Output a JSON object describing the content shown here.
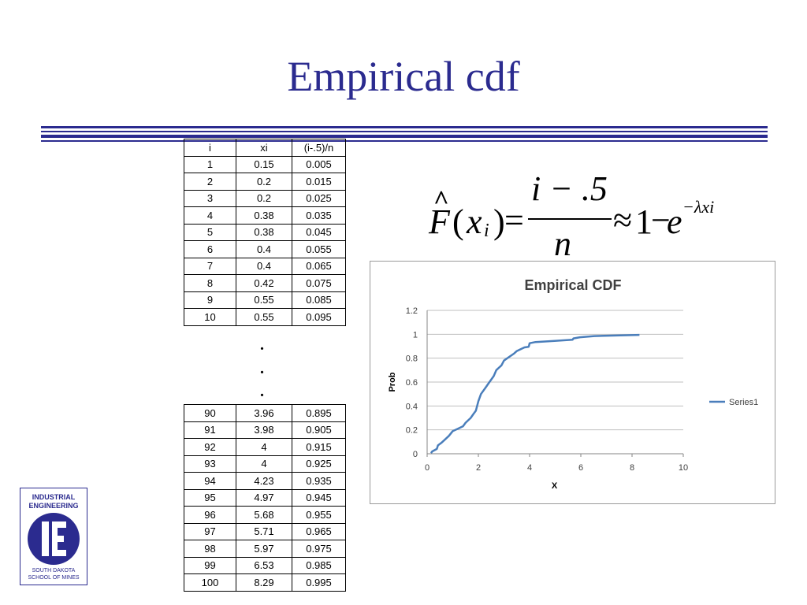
{
  "title": "Empirical cdf",
  "table": {
    "headers": [
      "i",
      "xi",
      "(i-.5)/n"
    ],
    "rows_top": [
      [
        "1",
        "0.15",
        "0.005"
      ],
      [
        "2",
        "0.2",
        "0.015"
      ],
      [
        "3",
        "0.2",
        "0.025"
      ],
      [
        "4",
        "0.38",
        "0.035"
      ],
      [
        "5",
        "0.38",
        "0.045"
      ],
      [
        "6",
        "0.4",
        "0.055"
      ],
      [
        "7",
        "0.4",
        "0.065"
      ],
      [
        "8",
        "0.42",
        "0.075"
      ],
      [
        "9",
        "0.55",
        "0.085"
      ],
      [
        "10",
        "0.55",
        "0.095"
      ]
    ],
    "ellipsis": ".",
    "rows_bottom": [
      [
        "90",
        "3.96",
        "0.895"
      ],
      [
        "91",
        "3.98",
        "0.905"
      ],
      [
        "92",
        "4",
        "0.915"
      ],
      [
        "93",
        "4",
        "0.925"
      ],
      [
        "94",
        "4.23",
        "0.935"
      ],
      [
        "95",
        "4.97",
        "0.945"
      ],
      [
        "96",
        "5.68",
        "0.955"
      ],
      [
        "97",
        "5.71",
        "0.965"
      ],
      [
        "98",
        "5.97",
        "0.975"
      ],
      [
        "99",
        "6.53",
        "0.985"
      ],
      [
        "100",
        "8.29",
        "0.995"
      ]
    ]
  },
  "formula": {
    "F": "F",
    "hat": "^",
    "open_paren": "(",
    "x": "x",
    "sub_i": "i",
    "close_paren": ")",
    "equals": "=",
    "numerator": "i − .5",
    "denominator": "n",
    "approx": "≈",
    "one": "1",
    "minus": "−",
    "e": "e",
    "exponent": "−λxi"
  },
  "chart_data": {
    "type": "line",
    "title": "Empirical CDF",
    "xlabel": "X",
    "ylabel": "Prob",
    "xlim": [
      0,
      10
    ],
    "ylim": [
      0,
      1.2
    ],
    "xticks": [
      "0",
      "2",
      "4",
      "6",
      "8",
      "10"
    ],
    "yticks": [
      "0",
      "0.2",
      "0.4",
      "0.6",
      "0.8",
      "1",
      "1.2"
    ],
    "grid": true,
    "legend_position": "right",
    "series": [
      {
        "name": "Series1",
        "color": "#4a7ebb",
        "x": [
          0.15,
          0.2,
          0.38,
          0.42,
          0.55,
          0.7,
          0.85,
          1.0,
          1.2,
          1.4,
          1.5,
          1.7,
          1.8,
          1.9,
          2.0,
          2.1,
          2.3,
          2.4,
          2.6,
          2.7,
          2.9,
          3.0,
          3.2,
          3.4,
          3.5,
          3.7,
          3.8,
          3.96,
          3.98,
          4.0,
          4.23,
          4.97,
          5.68,
          5.71,
          5.97,
          6.53,
          8.29
        ],
        "y": [
          0.005,
          0.02,
          0.04,
          0.07,
          0.09,
          0.12,
          0.15,
          0.19,
          0.21,
          0.23,
          0.26,
          0.3,
          0.33,
          0.36,
          0.44,
          0.5,
          0.56,
          0.59,
          0.65,
          0.7,
          0.74,
          0.78,
          0.81,
          0.84,
          0.86,
          0.88,
          0.89,
          0.895,
          0.905,
          0.925,
          0.935,
          0.945,
          0.955,
          0.965,
          0.975,
          0.985,
          0.995
        ]
      }
    ]
  },
  "logo": {
    "line1": "INDUSTRIAL",
    "line2": "ENGINEERING",
    "line3": "SOUTH DAKOTA",
    "line4": "SCHOOL OF MINES",
    "color": "#2b2b8f"
  }
}
